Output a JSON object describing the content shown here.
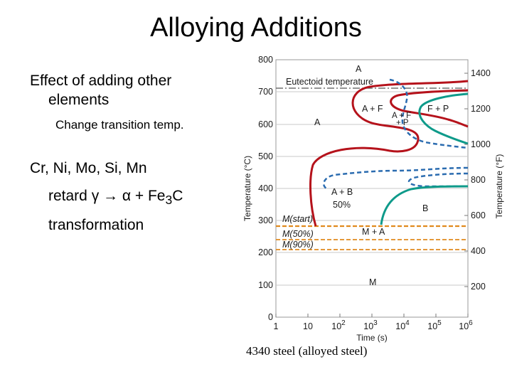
{
  "slide": {
    "title": "Alloying Additions",
    "bullet1_line1": "Effect of adding other",
    "bullet1_line2": "elements",
    "bullet2": "Change transition temp.",
    "bullet3": "Cr, Ni, Mo, Si, Mn",
    "bullet4_part1": "retard ",
    "bullet4_gamma": "γ",
    "bullet4_arrow": "→",
    "bullet4_alpha": "α",
    "bullet4_part2": " + Fe",
    "bullet4_sub": "3",
    "bullet4_part3": "C",
    "bullet4_line2": "transformation",
    "caption": "4340 steel (alloyed steel)"
  },
  "diagram": {
    "y_left_label": "Temperature (°C)",
    "y_right_label": "Temperature (°F)",
    "x_label": "Time (s)",
    "y_left_ticks": [
      "0",
      "100",
      "200",
      "300",
      "400",
      "500",
      "600",
      "700",
      "800"
    ],
    "y_right_ticks": [
      "200",
      "400",
      "600",
      "800",
      "1000",
      "1200",
      "1400"
    ],
    "x_ticks": [
      {
        "base": "1",
        "exp": ""
      },
      {
        "base": "10",
        "exp": ""
      },
      {
        "base": "10",
        "exp": "2"
      },
      {
        "base": "10",
        "exp": "3"
      },
      {
        "base": "10",
        "exp": "4"
      },
      {
        "base": "10",
        "exp": "5"
      },
      {
        "base": "10",
        "exp": "6"
      }
    ],
    "labels": {
      "A_top": "A",
      "eutectoid": "Eutectoid temperature",
      "A_plus_F": "A + F",
      "A_plus_F_small": "A + F",
      "A_plus_P": "+ P",
      "F_plus_P": "F + P",
      "A_left": "A",
      "A_plus_B": "A + B",
      "fifty": "50%",
      "B": "B",
      "M_start": "M(start)",
      "M_50": "M(50%)",
      "M_90": "M(90%)",
      "M_plus_A": "M + A",
      "M": "M"
    },
    "colors": {
      "red_curve": "#b5121b",
      "blue_dashed": "#2b6cb0",
      "teal_curve": "#0e9a8a",
      "martensite_lines": "#e08a1e",
      "eutectoid_line": "#555555",
      "grid": "#c8c8c8"
    }
  }
}
